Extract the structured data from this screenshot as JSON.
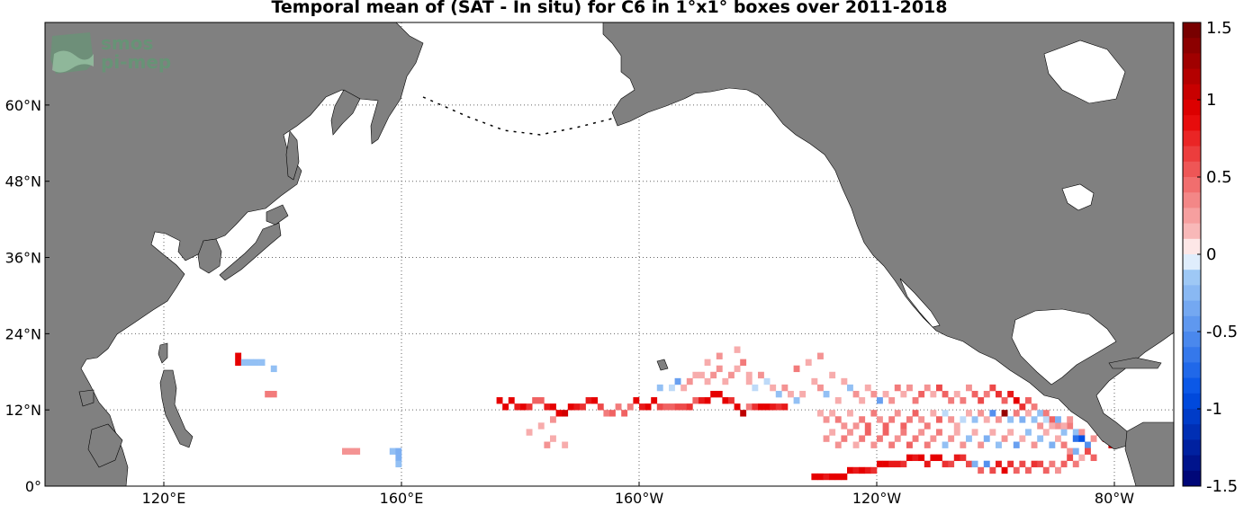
{
  "title": "Temporal mean of (SAT - In situ) for C6 in 1°x1° boxes over 2011-2018",
  "logo": {
    "line1": "smos",
    "line2": "pi-mep"
  },
  "axes": {
    "lon_labels": [
      "120°E",
      "160°E",
      "160°W",
      "120°W",
      "80°W"
    ],
    "lon_values": [
      120,
      160,
      200,
      240,
      280
    ],
    "lat_labels": [
      "0°",
      "12°N",
      "24°N",
      "36°N",
      "48°N",
      "60°N"
    ],
    "lat_values": [
      0,
      12,
      24,
      36,
      48,
      60
    ],
    "lon_range": [
      100,
      290
    ],
    "lat_range": [
      0,
      73
    ]
  },
  "colorbar": {
    "range": [
      -1.5,
      1.5
    ],
    "tick_labels": [
      "1.5",
      "1",
      "0.5",
      "0",
      "-0.5",
      "-1",
      "-1.5"
    ],
    "tick_values": [
      1.5,
      1,
      0.5,
      0,
      -0.5,
      -1,
      -1.5
    ],
    "colors": {
      "neg_max": "#00006e",
      "neg_mid": "#0050e6",
      "neg_low": "#9ec8f5",
      "zero": "#ffffff",
      "pos_low": "#f8b8b8",
      "pos_mid": "#e60000",
      "pos_max": "#6e0000"
    }
  },
  "colors": {
    "land": "#808080",
    "grid": "#666666",
    "ocean": "#ffffff"
  },
  "chart_data": {
    "type": "heatmap",
    "cells_lon_lat_value": [
      [
        132,
        20,
        0.9
      ],
      [
        132,
        19,
        0.9
      ],
      [
        133,
        19,
        -0.2
      ],
      [
        134,
        19,
        -0.2
      ],
      [
        135,
        19,
        -0.2
      ],
      [
        136,
        19,
        -0.2
      ],
      [
        138,
        18,
        -0.2
      ],
      [
        137,
        14,
        0.4
      ],
      [
        138,
        14,
        0.4
      ],
      [
        150,
        5,
        0.3
      ],
      [
        151,
        5,
        0.3
      ],
      [
        152,
        5,
        0.3
      ],
      [
        158,
        5,
        -0.2
      ],
      [
        159,
        5,
        -0.3
      ],
      [
        159,
        4,
        -0.3
      ],
      [
        159,
        3,
        -0.2
      ],
      [
        176,
        13,
        0.9
      ],
      [
        177,
        12,
        0.9
      ],
      [
        178,
        13,
        0.9
      ],
      [
        179,
        12,
        0.8
      ],
      [
        180,
        12,
        0.9
      ],
      [
        181,
        12,
        0.7
      ],
      [
        182,
        13,
        0.5
      ],
      [
        183,
        13,
        0.5
      ],
      [
        184,
        12,
        0.8
      ],
      [
        185,
        12,
        0.9
      ],
      [
        186,
        11,
        0.9
      ],
      [
        187,
        11,
        1.0
      ],
      [
        188,
        12,
        0.9
      ],
      [
        189,
        12,
        0.8
      ],
      [
        190,
        12,
        0.7
      ],
      [
        191,
        13,
        0.8
      ],
      [
        192,
        13,
        0.9
      ],
      [
        193,
        12,
        0.6
      ],
      [
        194,
        11,
        0.4
      ],
      [
        195,
        11,
        0.5
      ],
      [
        196,
        12,
        0.4
      ],
      [
        197,
        11,
        0.5
      ],
      [
        198,
        12,
        0.4
      ],
      [
        199,
        13,
        0.9
      ],
      [
        200,
        12,
        0.8
      ],
      [
        201,
        12,
        0.9
      ],
      [
        202,
        13,
        0.9
      ],
      [
        203,
        12,
        0.6
      ],
      [
        204,
        12,
        0.5
      ],
      [
        205,
        12,
        0.5
      ],
      [
        206,
        12,
        0.6
      ],
      [
        207,
        12,
        0.6
      ],
      [
        208,
        12,
        0.7
      ],
      [
        209,
        13,
        0.5
      ],
      [
        210,
        13,
        0.8
      ],
      [
        211,
        13,
        0.9
      ],
      [
        212,
        14,
        0.9
      ],
      [
        213,
        14,
        0.9
      ],
      [
        214,
        13,
        0.9
      ],
      [
        215,
        13,
        0.7
      ],
      [
        216,
        12,
        0.9
      ],
      [
        217,
        11,
        1.1
      ],
      [
        218,
        12,
        0.4
      ],
      [
        219,
        12,
        0.7
      ],
      [
        220,
        12,
        0.9
      ],
      [
        221,
        12,
        0.9
      ],
      [
        222,
        12,
        0.8
      ],
      [
        223,
        12,
        0.7
      ],
      [
        224,
        12,
        0.8
      ],
      [
        185,
        10,
        0.3
      ],
      [
        183,
        9,
        0.2
      ],
      [
        181,
        8,
        0.2
      ],
      [
        185,
        7,
        0.2
      ],
      [
        184,
        6,
        0.3
      ],
      [
        187,
        6,
        0.2
      ],
      [
        203,
        15,
        -0.2
      ],
      [
        205,
        15,
        -0.1
      ],
      [
        206,
        16,
        -0.4
      ],
      [
        207,
        15,
        0.2
      ],
      [
        208,
        16,
        0.3
      ],
      [
        209,
        17,
        0.2
      ],
      [
        210,
        17,
        0.2
      ],
      [
        211,
        16,
        0.2
      ],
      [
        212,
        17,
        0.3
      ],
      [
        213,
        18,
        0.3
      ],
      [
        214,
        16,
        0.2
      ],
      [
        215,
        17,
        0.3
      ],
      [
        216,
        18,
        0.2
      ],
      [
        217,
        19,
        0.4
      ],
      [
        218,
        17,
        0.2
      ],
      [
        216,
        21,
        0.2
      ],
      [
        213,
        20,
        0.3
      ],
      [
        211,
        19,
        0.2
      ],
      [
        218,
        16,
        0.2
      ],
      [
        219,
        15,
        -0.1
      ],
      [
        220,
        17,
        0.3
      ],
      [
        221,
        16,
        -0.1
      ],
      [
        222,
        15,
        0.2
      ],
      [
        223,
        14,
        -0.2
      ],
      [
        224,
        15,
        0.3
      ],
      [
        225,
        14,
        0.2
      ],
      [
        226,
        13,
        -0.2
      ],
      [
        227,
        14,
        0.2
      ],
      [
        228,
        19,
        0.2
      ],
      [
        226,
        18,
        0.4
      ],
      [
        230,
        20,
        0.3
      ],
      [
        229,
        16,
        0.2
      ],
      [
        230,
        15,
        0.3
      ],
      [
        231,
        14,
        -0.2
      ],
      [
        232,
        17,
        0.2
      ],
      [
        233,
        13,
        0.2
      ],
      [
        234,
        16,
        0.2
      ],
      [
        235,
        15,
        -0.2
      ],
      [
        236,
        14,
        0.3
      ],
      [
        237,
        13,
        0.2
      ],
      [
        238,
        15,
        0.2
      ],
      [
        239,
        14,
        0.3
      ],
      [
        240,
        13,
        -0.4
      ],
      [
        241,
        14,
        0.2
      ],
      [
        242,
        13,
        0.3
      ],
      [
        243,
        15,
        0.4
      ],
      [
        244,
        14,
        0.2
      ],
      [
        245,
        15,
        0.3
      ],
      [
        246,
        13,
        0.4
      ],
      [
        247,
        14,
        0.5
      ],
      [
        248,
        15,
        0.3
      ],
      [
        249,
        14,
        0.2
      ],
      [
        250,
        15,
        0.6
      ],
      [
        251,
        14,
        0.5
      ],
      [
        252,
        13,
        0.4
      ],
      [
        253,
        14,
        0.2
      ],
      [
        254,
        13,
        0.4
      ],
      [
        255,
        15,
        0.3
      ],
      [
        256,
        14,
        0.5
      ],
      [
        257,
        13,
        0.6
      ],
      [
        258,
        14,
        0.4
      ],
      [
        259,
        15,
        0.6
      ],
      [
        260,
        14,
        0.7
      ],
      [
        261,
        13,
        0.5
      ],
      [
        262,
        14,
        0.8
      ],
      [
        263,
        13,
        0.9
      ],
      [
        264,
        12,
        0.7
      ],
      [
        265,
        13,
        0.5
      ],
      [
        266,
        12,
        0.4
      ],
      [
        267,
        11,
        -0.2
      ],
      [
        268,
        11,
        0.4
      ],
      [
        269,
        10,
        0.5
      ],
      [
        270,
        9,
        0.3
      ],
      [
        271,
        8,
        -0.2
      ],
      [
        272,
        9,
        0.4
      ],
      [
        273,
        8,
        -0.2
      ],
      [
        274,
        8,
        0.3
      ],
      [
        230,
        11,
        0.2
      ],
      [
        231,
        10,
        0.3
      ],
      [
        232,
        11,
        0.2
      ],
      [
        233,
        10,
        0.4
      ],
      [
        234,
        9,
        0.3
      ],
      [
        235,
        11,
        0.2
      ],
      [
        236,
        9,
        0.3
      ],
      [
        237,
        10,
        0.4
      ],
      [
        238,
        9,
        0.5
      ],
      [
        239,
        11,
        0.4
      ],
      [
        240,
        10,
        0.3
      ],
      [
        241,
        9,
        0.5
      ],
      [
        242,
        10,
        0.4
      ],
      [
        243,
        11,
        0.3
      ],
      [
        244,
        9,
        0.5
      ],
      [
        245,
        10,
        0.4
      ],
      [
        246,
        11,
        0.5
      ],
      [
        247,
        10,
        0.3
      ],
      [
        248,
        9,
        0.4
      ],
      [
        249,
        11,
        0.2
      ],
      [
        250,
        10,
        0.5
      ],
      [
        251,
        11,
        -0.1
      ],
      [
        252,
        10,
        0.3
      ],
      [
        253,
        9,
        0.2
      ],
      [
        254,
        10,
        -0.1
      ],
      [
        255,
        11,
        0.2
      ],
      [
        256,
        10,
        -0.2
      ],
      [
        257,
        11,
        0.3
      ],
      [
        258,
        10,
        0.2
      ],
      [
        259,
        11,
        -0.5
      ],
      [
        260,
        10,
        0.3
      ],
      [
        261,
        11,
        1.3
      ],
      [
        262,
        10,
        -0.2
      ],
      [
        263,
        11,
        0.4
      ],
      [
        264,
        10,
        -0.3
      ],
      [
        265,
        11,
        0.2
      ],
      [
        266,
        10,
        -0.2
      ],
      [
        267,
        9,
        0.3
      ],
      [
        268,
        10,
        -0.1
      ],
      [
        269,
        9,
        0.2
      ],
      [
        270,
        10,
        -0.3
      ],
      [
        271,
        9,
        0.2
      ],
      [
        272,
        10,
        0.3
      ],
      [
        273,
        7,
        -0.7
      ],
      [
        274,
        7,
        -0.9
      ],
      [
        275,
        6,
        -0.5
      ],
      [
        276,
        7,
        0.3
      ],
      [
        277,
        8,
        0.5
      ],
      [
        278,
        7,
        0.9
      ],
      [
        279,
        6,
        1.0
      ],
      [
        231,
        7,
        0.3
      ],
      [
        232,
        8,
        0.2
      ],
      [
        233,
        6,
        0.3
      ],
      [
        234,
        7,
        0.4
      ],
      [
        235,
        8,
        0.3
      ],
      [
        236,
        6,
        0.2
      ],
      [
        237,
        7,
        0.4
      ],
      [
        238,
        8,
        0.5
      ],
      [
        239,
        6,
        0.3
      ],
      [
        240,
        7,
        0.4
      ],
      [
        241,
        8,
        0.5
      ],
      [
        242,
        6,
        0.4
      ],
      [
        243,
        7,
        0.3
      ],
      [
        244,
        8,
        0.4
      ],
      [
        245,
        6,
        0.5
      ],
      [
        246,
        7,
        0.4
      ],
      [
        247,
        8,
        0.3
      ],
      [
        248,
        6,
        0.4
      ],
      [
        249,
        7,
        0.3
      ],
      [
        250,
        8,
        0.4
      ],
      [
        251,
        6,
        -0.2
      ],
      [
        252,
        7,
        0.3
      ],
      [
        253,
        8,
        0.2
      ],
      [
        254,
        6,
        0.3
      ],
      [
        255,
        7,
        -0.2
      ],
      [
        256,
        8,
        0.2
      ],
      [
        257,
        6,
        0.3
      ],
      [
        258,
        7,
        -0.3
      ],
      [
        259,
        8,
        0.2
      ],
      [
        260,
        6,
        -0.2
      ],
      [
        261,
        7,
        0.3
      ],
      [
        262,
        8,
        0.2
      ],
      [
        263,
        6,
        -0.4
      ],
      [
        264,
        7,
        0.2
      ],
      [
        265,
        8,
        -0.2
      ],
      [
        266,
        6,
        0.3
      ],
      [
        267,
        7,
        -0.2
      ],
      [
        268,
        8,
        0.2
      ],
      [
        269,
        6,
        -0.3
      ],
      [
        270,
        7,
        0.2
      ],
      [
        271,
        6,
        0.4
      ],
      [
        272,
        5,
        0.3
      ],
      [
        273,
        5,
        -0.3
      ],
      [
        274,
        4,
        0.2
      ],
      [
        275,
        5,
        0.6
      ],
      [
        276,
        4,
        0.5
      ],
      [
        229,
        1,
        0.9
      ],
      [
        230,
        1,
        0.9
      ],
      [
        231,
        1,
        0.8
      ],
      [
        232,
        1,
        0.9
      ],
      [
        233,
        1,
        0.9
      ],
      [
        234,
        1,
        0.9
      ],
      [
        235,
        2,
        0.9
      ],
      [
        236,
        2,
        0.8
      ],
      [
        237,
        2,
        0.9
      ],
      [
        238,
        2,
        0.8
      ],
      [
        239,
        2,
        0.7
      ],
      [
        240,
        3,
        0.9
      ],
      [
        241,
        3,
        0.9
      ],
      [
        242,
        3,
        0.8
      ],
      [
        243,
        3,
        0.8
      ],
      [
        244,
        3,
        0.7
      ],
      [
        245,
        4,
        0.9
      ],
      [
        246,
        4,
        0.8
      ],
      [
        247,
        4,
        0.9
      ],
      [
        248,
        3,
        0.8
      ],
      [
        249,
        4,
        0.9
      ],
      [
        250,
        4,
        0.9
      ],
      [
        251,
        3,
        0.7
      ],
      [
        252,
        3,
        0.6
      ],
      [
        253,
        4,
        0.8
      ],
      [
        254,
        4,
        0.7
      ],
      [
        255,
        3,
        0.6
      ],
      [
        256,
        3,
        -0.3
      ],
      [
        257,
        2,
        0.5
      ],
      [
        258,
        3,
        -0.5
      ],
      [
        259,
        2,
        0.6
      ],
      [
        260,
        3,
        0.8
      ],
      [
        261,
        2,
        0.9
      ],
      [
        262,
        3,
        0.7
      ],
      [
        263,
        2,
        0.5
      ],
      [
        264,
        3,
        0.6
      ],
      [
        265,
        2,
        0.5
      ],
      [
        266,
        3,
        0.7
      ],
      [
        267,
        3,
        0.6
      ],
      [
        268,
        2,
        0.5
      ],
      [
        269,
        3,
        0.4
      ],
      [
        270,
        2,
        0.3
      ],
      [
        271,
        3,
        0.5
      ],
      [
        272,
        4,
        0.6
      ],
      [
        273,
        3,
        0.4
      ]
    ]
  }
}
